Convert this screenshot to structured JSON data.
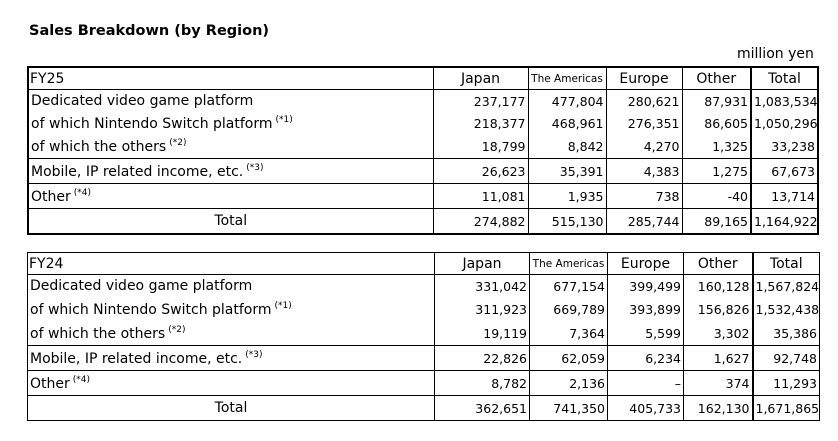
{
  "title": "Sales Breakdown (by Region)",
  "unit": "million yen",
  "columns": [
    "Japan",
    "The Americas",
    "Europe",
    "Other",
    "Total"
  ],
  "fy25": {
    "label": "FY25",
    "rows": [
      {
        "label": "Dedicated video game platform",
        "note": "",
        "values": [
          "237,177",
          "477,804",
          "280,621",
          "87,931",
          "1,083,534"
        ]
      },
      {
        "label": "of which Nintendo Switch platform",
        "note": "(*1)",
        "values": [
          "218,377",
          "468,961",
          "276,351",
          "86,605",
          "1,050,296"
        ]
      },
      {
        "label": "of which the others",
        "note": "(*2)",
        "values": [
          "18,799",
          "8,842",
          "4,270",
          "1,325",
          "33,238"
        ]
      },
      {
        "label": "Mobile, IP related income, etc.",
        "note": "(*3)",
        "values": [
          "26,623",
          "35,391",
          "4,383",
          "1,275",
          "67,673"
        ]
      },
      {
        "label": "Other",
        "note": "(*4)",
        "values": [
          "11,081",
          "1,935",
          "738",
          "-40",
          "13,714"
        ]
      },
      {
        "label": "Total",
        "note": "",
        "values": [
          "274,882",
          "515,130",
          "285,744",
          "89,165",
          "1,164,922"
        ]
      }
    ]
  },
  "fy24": {
    "label": "FY24",
    "rows": [
      {
        "label": "Dedicated video game platform",
        "note": "",
        "values": [
          "331,042",
          "677,154",
          "399,499",
          "160,128",
          "1,567,824"
        ]
      },
      {
        "label": "of which Nintendo Switch platform",
        "note": "(*1)",
        "values": [
          "311,923",
          "669,789",
          "393,899",
          "156,826",
          "1,532,438"
        ]
      },
      {
        "label": "of which the others",
        "note": "(*2)",
        "values": [
          "19,119",
          "7,364",
          "5,599",
          "3,302",
          "35,386"
        ]
      },
      {
        "label": "Mobile, IP related income, etc.",
        "note": "(*3)",
        "values": [
          "22,826",
          "62,059",
          "6,234",
          "1,627",
          "92,748"
        ]
      },
      {
        "label": "Other",
        "note": "(*4)",
        "values": [
          "8,782",
          "2,136",
          "–",
          "374",
          "11,293"
        ]
      },
      {
        "label": "Total",
        "note": "",
        "values": [
          "362,651",
          "741,350",
          "405,733",
          "162,130",
          "1,671,865"
        ]
      }
    ]
  }
}
